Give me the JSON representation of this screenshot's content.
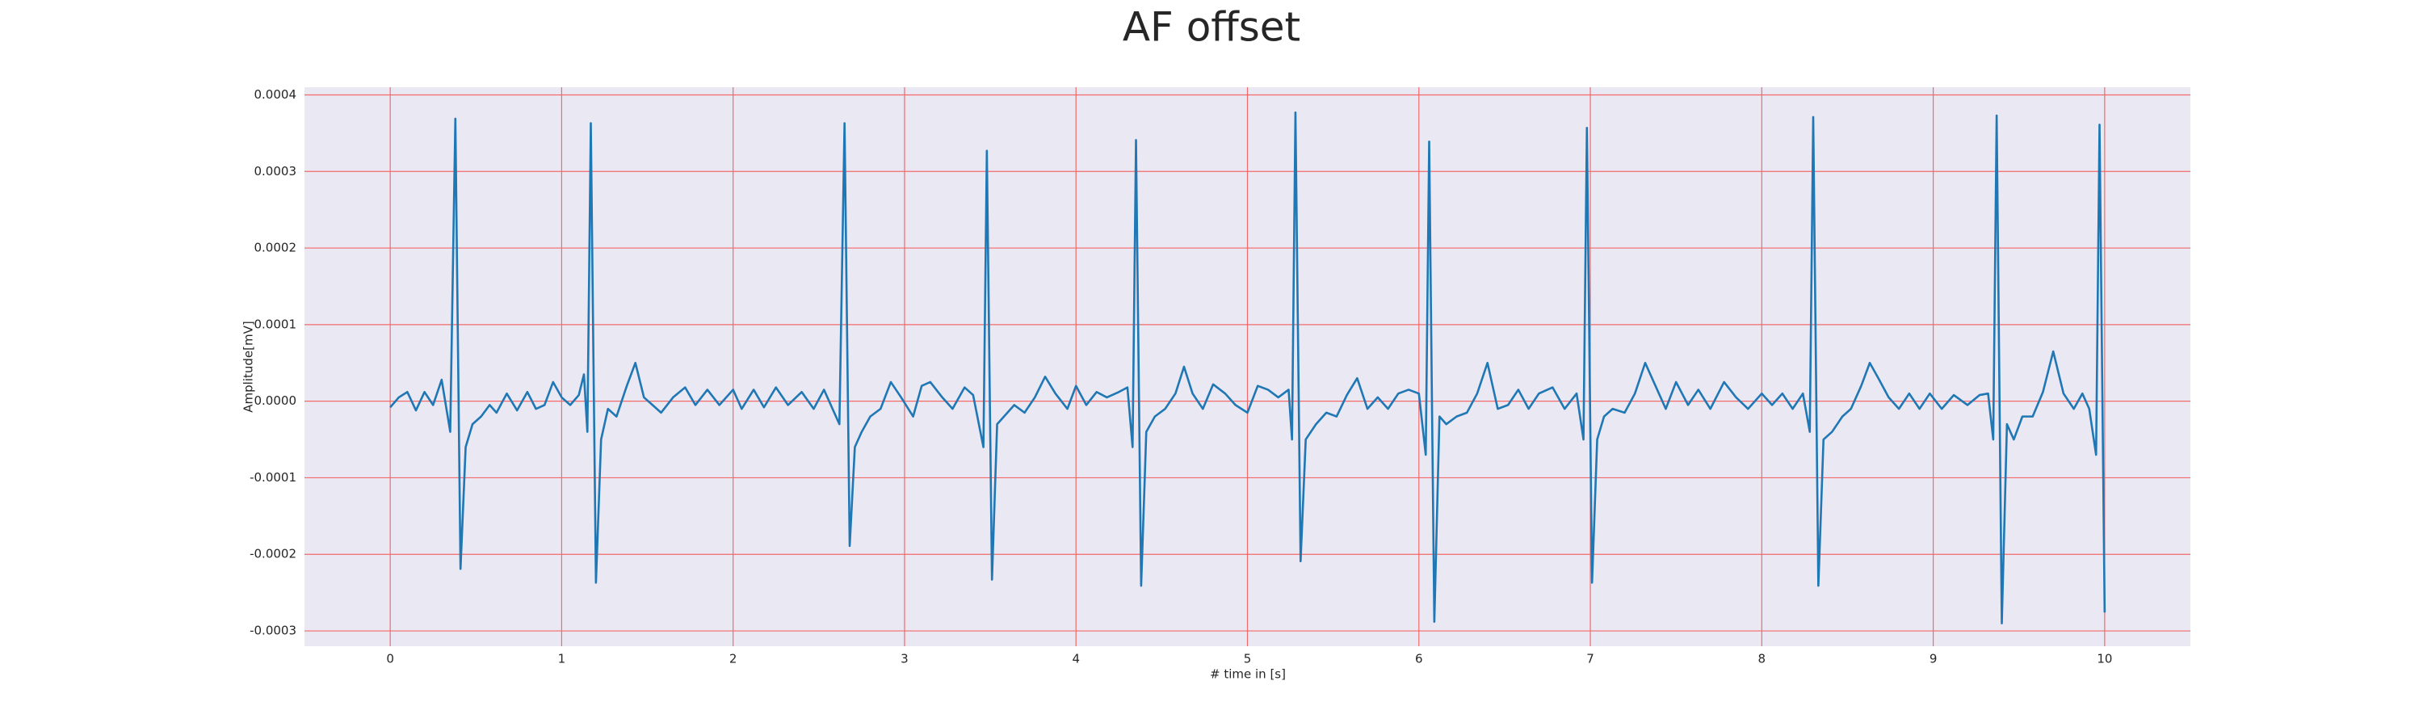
{
  "chart_data": {
    "type": "line",
    "title": "AF offset",
    "xlabel": "# time in [s]",
    "ylabel": "Amplitude[mV]",
    "color": "#1f77b4",
    "grid": true,
    "xlim": [
      -0.5,
      10.5
    ],
    "ylim": [
      -0.00032,
      0.00041
    ],
    "xticks": [
      0,
      1,
      2,
      3,
      4,
      5,
      6,
      7,
      8,
      9,
      10
    ],
    "yticks": [
      {
        "value": -0.0003,
        "label": "-0.0003"
      },
      {
        "value": -0.0002,
        "label": "-0.0002"
      },
      {
        "value": -0.0001,
        "label": "-0.0001"
      },
      {
        "value": 0,
        "label": "0.0000"
      },
      {
        "value": 0.0001,
        "label": "0.0001"
      },
      {
        "value": 0.0002,
        "label": "0.0002"
      },
      {
        "value": 0.0003,
        "label": "0.0003"
      },
      {
        "value": 0.0004,
        "label": "0.0004"
      }
    ],
    "x": [
      0.0,
      0.05,
      0.1,
      0.15,
      0.2,
      0.25,
      0.3,
      0.35,
      0.38,
      0.41,
      0.44,
      0.48,
      0.53,
      0.58,
      0.62,
      0.68,
      0.74,
      0.8,
      0.85,
      0.9,
      0.95,
      1.0,
      1.05,
      1.1,
      1.13,
      1.15,
      1.17,
      1.2,
      1.23,
      1.27,
      1.32,
      1.38,
      1.43,
      1.48,
      1.53,
      1.58,
      1.65,
      1.72,
      1.78,
      1.85,
      1.92,
      2.0,
      2.05,
      2.12,
      2.18,
      2.25,
      2.32,
      2.4,
      2.47,
      2.53,
      2.58,
      2.62,
      2.65,
      2.68,
      2.71,
      2.75,
      2.8,
      2.86,
      2.92,
      2.98,
      3.05,
      3.1,
      3.15,
      3.22,
      3.28,
      3.35,
      3.4,
      3.46,
      3.48,
      3.51,
      3.54,
      3.58,
      3.64,
      3.7,
      3.76,
      3.82,
      3.88,
      3.95,
      4.0,
      4.06,
      4.12,
      4.18,
      4.25,
      4.3,
      4.33,
      4.35,
      4.38,
      4.41,
      4.46,
      4.52,
      4.58,
      4.63,
      4.68,
      4.74,
      4.8,
      4.87,
      4.93,
      5.0,
      5.06,
      5.12,
      5.18,
      5.24,
      5.26,
      5.28,
      5.31,
      5.34,
      5.4,
      5.46,
      5.52,
      5.58,
      5.64,
      5.7,
      5.76,
      5.82,
      5.88,
      5.94,
      6.0,
      6.04,
      6.06,
      6.09,
      6.12,
      6.16,
      6.22,
      6.28,
      6.34,
      6.4,
      6.46,
      6.52,
      6.58,
      6.64,
      6.7,
      6.78,
      6.85,
      6.92,
      6.96,
      6.98,
      7.01,
      7.04,
      7.08,
      7.13,
      7.2,
      7.26,
      7.32,
      7.38,
      7.44,
      7.5,
      7.57,
      7.63,
      7.7,
      7.78,
      7.85,
      7.92,
      8.0,
      8.06,
      8.12,
      8.18,
      8.24,
      8.28,
      8.3,
      8.33,
      8.36,
      8.41,
      8.47,
      8.52,
      8.58,
      8.63,
      8.68,
      8.74,
      8.8,
      8.86,
      8.92,
      8.98,
      9.05,
      9.12,
      9.2,
      9.27,
      9.32,
      9.35,
      9.37,
      9.4,
      9.43,
      9.47,
      9.52,
      9.58,
      9.64,
      9.7,
      9.76,
      9.82,
      9.87,
      9.91,
      9.95,
      9.97,
      10.0
    ],
    "values": [
      -8e-06,
      5e-06,
      1.2e-05,
      -1.2e-05,
      1.2e-05,
      -5e-06,
      2.8e-05,
      -4e-05,
      0.000369,
      -0.000219,
      -6e-05,
      -3e-05,
      -2e-05,
      -5e-06,
      -1.5e-05,
      1e-05,
      -1.2e-05,
      1.2e-05,
      -1e-05,
      -5e-06,
      2.5e-05,
      5e-06,
      -5e-06,
      8e-06,
      3.5e-05,
      -4e-05,
      0.000363,
      -0.000237,
      -5e-05,
      -1e-05,
      -2e-05,
      2e-05,
      5e-05,
      5e-06,
      -5e-06,
      -1.5e-05,
      5e-06,
      1.8e-05,
      -5e-06,
      1.5e-05,
      -5e-06,
      1.5e-05,
      -1e-05,
      1.5e-05,
      -8e-06,
      1.8e-05,
      -5e-06,
      1.2e-05,
      -1e-05,
      1.5e-05,
      -1e-05,
      -3e-05,
      0.000363,
      -0.000189,
      -6e-05,
      -4e-05,
      -2e-05,
      -1e-05,
      2.5e-05,
      5e-06,
      -2e-05,
      2e-05,
      2.5e-05,
      5e-06,
      -1e-05,
      1.8e-05,
      8e-06,
      -6e-05,
      0.000327,
      -0.000233,
      -3e-05,
      -2e-05,
      -5e-06,
      -1.5e-05,
      5e-06,
      3.2e-05,
      1e-05,
      -1e-05,
      2e-05,
      -5e-06,
      1.2e-05,
      5e-06,
      1.2e-05,
      1.8e-05,
      -6e-05,
      0.000341,
      -0.000241,
      -4e-05,
      -2e-05,
      -1e-05,
      1e-05,
      4.5e-05,
      1e-05,
      -1e-05,
      2.2e-05,
      1e-05,
      -5e-06,
      -1.5e-05,
      2e-05,
      1.5e-05,
      5e-06,
      1.5e-05,
      -5e-05,
      0.000377,
      -0.000209,
      -5e-05,
      -3e-05,
      -1.5e-05,
      -2e-05,
      8e-06,
      3e-05,
      -1e-05,
      5e-06,
      -1e-05,
      1e-05,
      1.5e-05,
      1e-05,
      -7e-05,
      0.000339,
      -0.000288,
      -2e-05,
      -3e-05,
      -2e-05,
      -1.5e-05,
      1e-05,
      5e-05,
      -1e-05,
      -5e-06,
      1.5e-05,
      -1e-05,
      1e-05,
      1.8e-05,
      -1e-05,
      1e-05,
      -5e-05,
      0.000357,
      -0.000237,
      -5e-05,
      -2e-05,
      -1e-05,
      -1.5e-05,
      1e-05,
      5e-05,
      2e-05,
      -1e-05,
      2.5e-05,
      -5e-06,
      1.5e-05,
      -1e-05,
      2.5e-05,
      5e-06,
      -1e-05,
      1e-05,
      -5e-06,
      1e-05,
      -1e-05,
      1e-05,
      -4e-05,
      0.000371,
      -0.000241,
      -5e-05,
      -4e-05,
      -2e-05,
      -1e-05,
      2e-05,
      5e-05,
      3e-05,
      5e-06,
      -1e-05,
      1e-05,
      -1e-05,
      1e-05,
      -1e-05,
      8e-06,
      -5e-06,
      8e-06,
      1e-05,
      -5e-05,
      0.000373,
      -0.00029,
      -3e-05,
      -5e-05,
      -2e-05,
      -2e-05,
      1.2e-05,
      6.5e-05,
      1e-05,
      -1e-05,
      1e-05,
      -1e-05,
      -7e-05,
      0.000361,
      -0.000276
    ]
  }
}
